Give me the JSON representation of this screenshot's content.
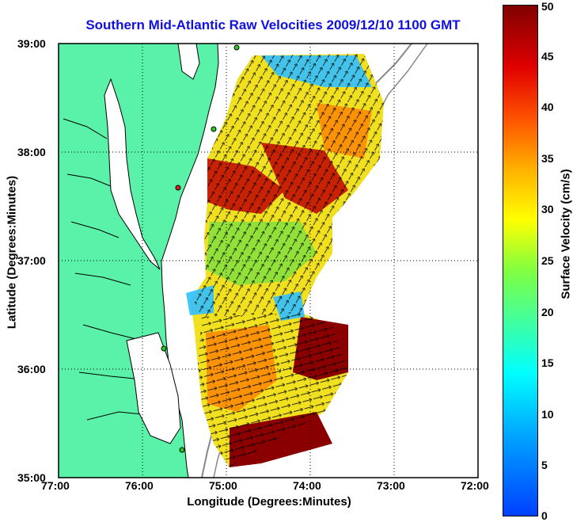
{
  "title": "Southern Mid-Atlantic Raw Velocities 2009/12/10 1100 GMT",
  "xlabel": "Longitude (Degrees:Minutes)",
  "ylabel": "Latitude (Degrees:Minutes)",
  "colorbar": {
    "label": "Surface Velocity (cm/s)",
    "ticks": [
      "0",
      "5",
      "10",
      "15",
      "20",
      "25",
      "30",
      "35",
      "40",
      "45",
      "50"
    ],
    "min": 0,
    "max": 50
  },
  "x_ticks": [
    "77:00",
    "76:00",
    "75:00",
    "74:00",
    "73:00",
    "72:00"
  ],
  "y_ticks": [
    "39:00",
    "38:00",
    "37:00",
    "36:00",
    "35:00"
  ],
  "colors": {
    "land": "#5af2a8",
    "title": "#1010e0",
    "coastline": "#000000",
    "bathymetry": "#888888",
    "station": "#22cc22"
  }
}
